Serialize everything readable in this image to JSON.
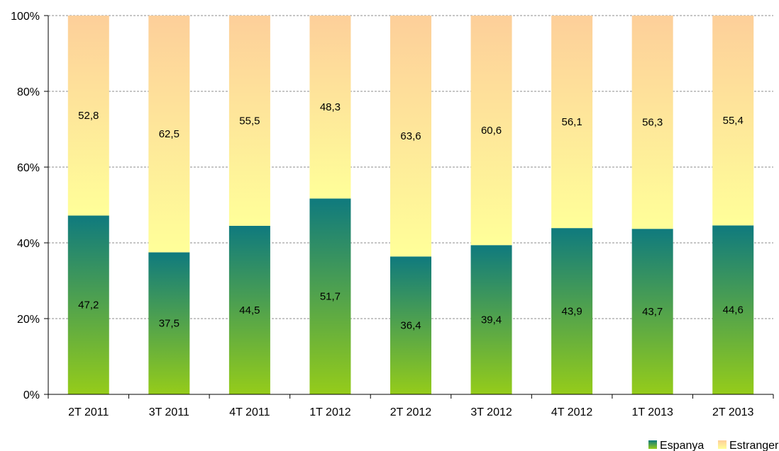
{
  "chart_data": {
    "type": "bar",
    "stacked": true,
    "percent": true,
    "categories": [
      "2T 2011",
      "3T 2011",
      "4T 2011",
      "1T 2012",
      "2T 2012",
      "3T 2012",
      "4T 2012",
      "1T 2013",
      "2T 2013"
    ],
    "series": [
      {
        "name": "Espanya",
        "values": [
          47.2,
          37.5,
          44.5,
          51.7,
          36.4,
          39.4,
          43.9,
          43.7,
          44.6
        ]
      },
      {
        "name": "Estranger",
        "values": [
          52.8,
          62.5,
          55.5,
          48.3,
          63.6,
          60.6,
          56.1,
          56.3,
          55.4
        ]
      }
    ],
    "ylim": [
      0,
      100
    ],
    "yticks": [
      "0%",
      "20%",
      "40%",
      "60%",
      "80%",
      "100%"
    ],
    "grid": "horizontal dashed",
    "legend_position": "bottom-right",
    "colors": {
      "Espanya_top": "#0f7a7e",
      "Espanya_bottom": "#95cc1a",
      "Estranger_top": "#fdcf9a",
      "Estranger_bottom": "#ffff99"
    }
  }
}
